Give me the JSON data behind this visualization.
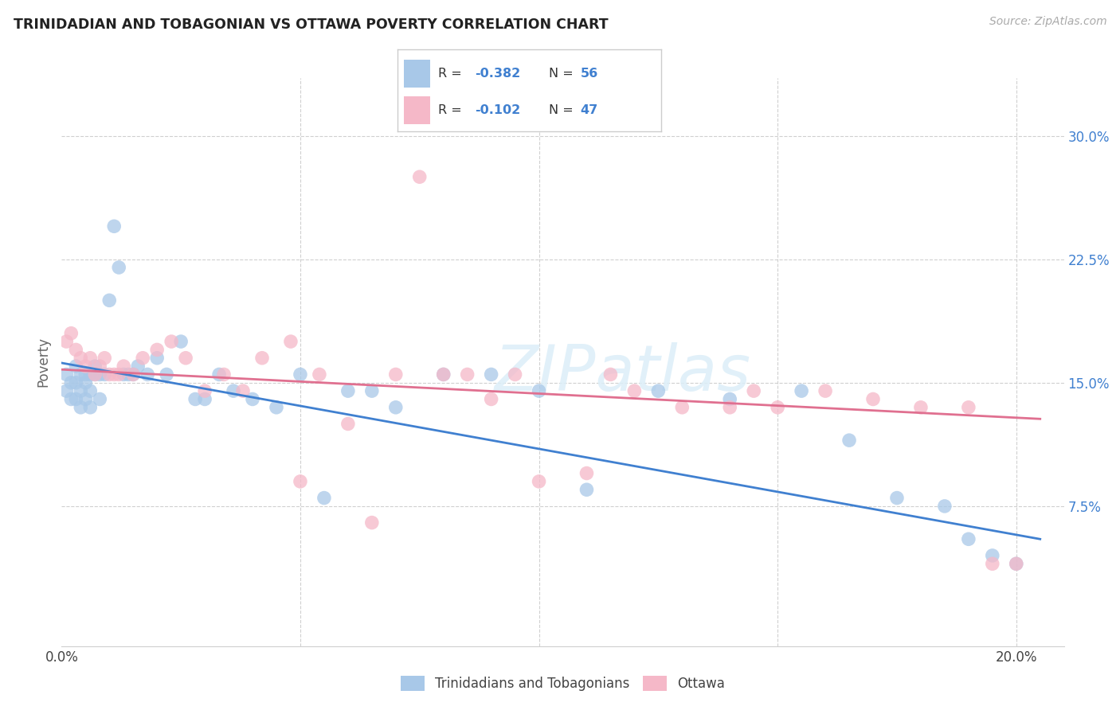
{
  "title": "TRINIDADIAN AND TOBAGONIAN VS OTTAWA POVERTY CORRELATION CHART",
  "source": "Source: ZipAtlas.com",
  "ylabel": "Poverty",
  "y_tick_values": [
    0.075,
    0.15,
    0.225,
    0.3
  ],
  "y_tick_labels": [
    "7.5%",
    "15.0%",
    "22.5%",
    "30.0%"
  ],
  "xlim": [
    0.0,
    0.21
  ],
  "ylim": [
    -0.01,
    0.335
  ],
  "legend_label_blue": "Trinidadians and Tobagonians",
  "legend_label_pink": "Ottawa",
  "watermark": "ZIPatlas",
  "blue_color": "#a8c8e8",
  "pink_color": "#f5b8c8",
  "blue_line_color": "#4080d0",
  "pink_line_color": "#e07090",
  "text_color": "#4080d0",
  "background_color": "#ffffff",
  "grid_color": "#d0d0d0",
  "blue_scatter_x": [
    0.001,
    0.001,
    0.002,
    0.002,
    0.003,
    0.003,
    0.003,
    0.004,
    0.004,
    0.004,
    0.005,
    0.005,
    0.005,
    0.006,
    0.006,
    0.006,
    0.007,
    0.007,
    0.008,
    0.008,
    0.009,
    0.01,
    0.011,
    0.012,
    0.013,
    0.014,
    0.015,
    0.016,
    0.018,
    0.02,
    0.022,
    0.025,
    0.028,
    0.03,
    0.033,
    0.036,
    0.04,
    0.045,
    0.05,
    0.055,
    0.06,
    0.065,
    0.07,
    0.08,
    0.09,
    0.1,
    0.11,
    0.125,
    0.14,
    0.155,
    0.165,
    0.175,
    0.185,
    0.19,
    0.195,
    0.2
  ],
  "blue_scatter_y": [
    0.155,
    0.145,
    0.15,
    0.14,
    0.16,
    0.15,
    0.14,
    0.155,
    0.145,
    0.135,
    0.15,
    0.14,
    0.155,
    0.155,
    0.145,
    0.135,
    0.16,
    0.155,
    0.155,
    0.14,
    0.155,
    0.2,
    0.245,
    0.22,
    0.155,
    0.155,
    0.155,
    0.16,
    0.155,
    0.165,
    0.155,
    0.175,
    0.14,
    0.14,
    0.155,
    0.145,
    0.14,
    0.135,
    0.155,
    0.08,
    0.145,
    0.145,
    0.135,
    0.155,
    0.155,
    0.145,
    0.085,
    0.145,
    0.14,
    0.145,
    0.115,
    0.08,
    0.075,
    0.055,
    0.045,
    0.04
  ],
  "pink_scatter_x": [
    0.001,
    0.002,
    0.003,
    0.004,
    0.005,
    0.006,
    0.007,
    0.008,
    0.009,
    0.01,
    0.011,
    0.012,
    0.013,
    0.015,
    0.017,
    0.02,
    0.023,
    0.026,
    0.03,
    0.034,
    0.038,
    0.042,
    0.048,
    0.054,
    0.06,
    0.07,
    0.08,
    0.09,
    0.1,
    0.11,
    0.12,
    0.13,
    0.14,
    0.15,
    0.16,
    0.17,
    0.18,
    0.19,
    0.195,
    0.2,
    0.05,
    0.065,
    0.075,
    0.085,
    0.095,
    0.115,
    0.145
  ],
  "pink_scatter_y": [
    0.175,
    0.18,
    0.17,
    0.165,
    0.16,
    0.165,
    0.155,
    0.16,
    0.165,
    0.155,
    0.155,
    0.155,
    0.16,
    0.155,
    0.165,
    0.17,
    0.175,
    0.165,
    0.145,
    0.155,
    0.145,
    0.165,
    0.175,
    0.155,
    0.125,
    0.155,
    0.155,
    0.14,
    0.09,
    0.095,
    0.145,
    0.135,
    0.135,
    0.135,
    0.145,
    0.14,
    0.135,
    0.135,
    0.04,
    0.04,
    0.09,
    0.065,
    0.275,
    0.155,
    0.155,
    0.155,
    0.145
  ],
  "blue_trendline_x": [
    0.0,
    0.205
  ],
  "blue_trendline_y": [
    0.162,
    0.055
  ],
  "pink_trendline_x": [
    0.0,
    0.205
  ],
  "pink_trendline_y": [
    0.158,
    0.128
  ]
}
